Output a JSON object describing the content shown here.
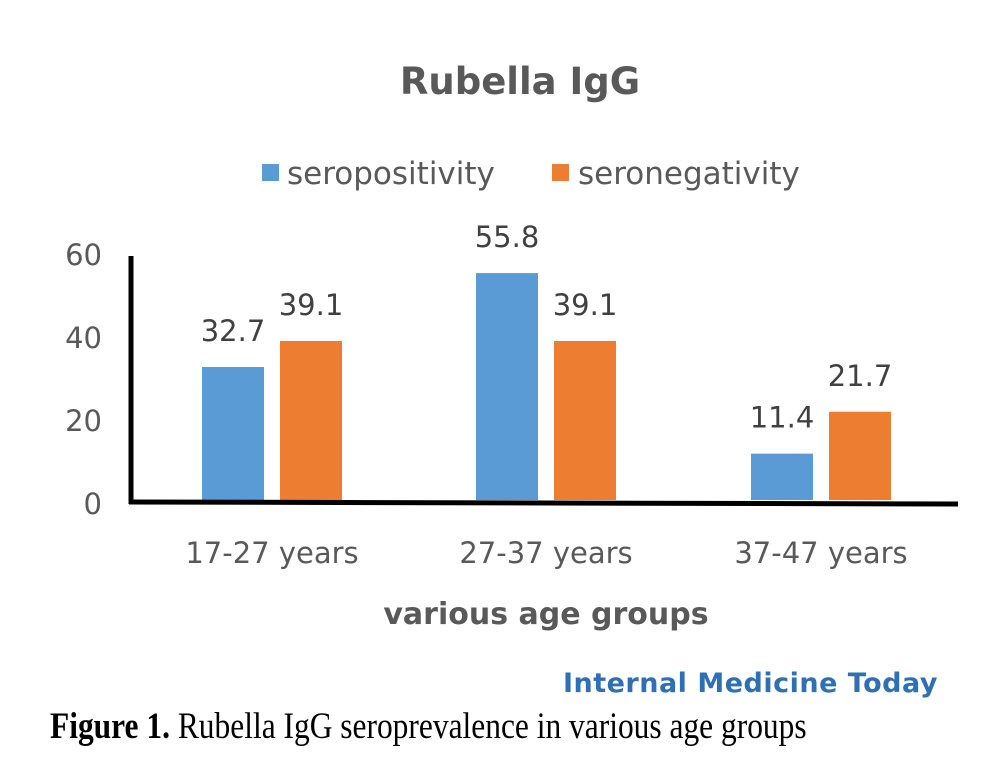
{
  "chart_data": {
    "type": "bar",
    "title": "Rubella IgG",
    "xlabel": "various age groups",
    "ylabel": "",
    "categories": [
      "17-27 years",
      "27-37 years",
      "37-47 years"
    ],
    "series": [
      {
        "name": "seropositivity",
        "values": [
          32.7,
          55.8,
          11.4
        ],
        "color": "#5b9bd5"
      },
      {
        "name": "seronegativity",
        "values": [
          39.1,
          39.1,
          21.7
        ],
        "color": "#ed7d31"
      }
    ],
    "data_labels": [
      [
        "32.7",
        "55.8",
        "11.4"
      ],
      [
        "39.1",
        "39.1",
        "21.7"
      ]
    ],
    "ylim": [
      0,
      60
    ],
    "yticks": [
      "0",
      "20",
      "40",
      "60"
    ],
    "grid": false,
    "legend_position": "top"
  },
  "watermark": "Internal Medicine Today",
  "caption": {
    "label": "Figure 1.",
    "text": " Rubella IgG seroprevalence in various age groups"
  }
}
